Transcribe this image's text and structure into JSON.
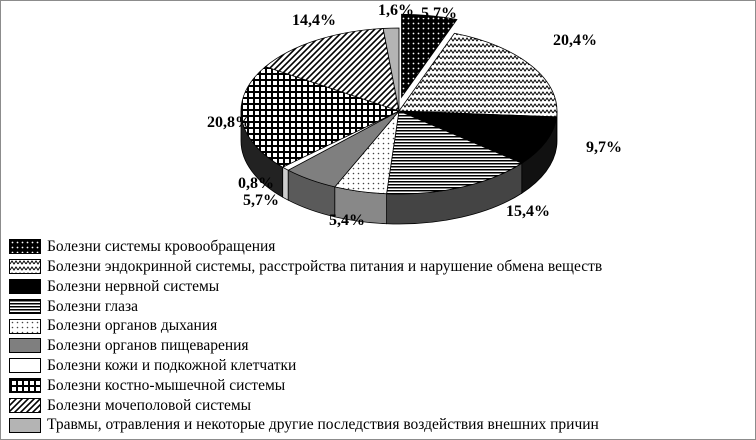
{
  "chart_data": {
    "type": "pie",
    "style": "3d-exploded",
    "legend_position": "bottom",
    "slices": [
      {
        "label": "Болезни системы кровообращения",
        "value": 5.7,
        "display": "5,7%",
        "pattern": "dots-white-on-black"
      },
      {
        "label": "Болезни эндокринной системы, расстройства питания и нарушение обмена веществ",
        "value": 20.4,
        "display": "20,4%",
        "pattern": "zigzag"
      },
      {
        "label": "Болезни нервной системы",
        "value": 9.7,
        "display": "9,7%",
        "pattern": "solid-black"
      },
      {
        "label": "Болезни глаза",
        "value": 15.4,
        "display": "15,4%",
        "pattern": "horizontal-lines"
      },
      {
        "label": "Болезни органов дыхания",
        "value": 5.4,
        "display": "5,4%",
        "pattern": "dots-black-on-white"
      },
      {
        "label": "Болезни органов пищеварения",
        "value": 5.7,
        "display": "5,7%",
        "pattern": "solid-gray"
      },
      {
        "label": "Болезни кожи и подкожной клетчатки",
        "value": 0.8,
        "display": "0,8%",
        "pattern": "white"
      },
      {
        "label": "Болезни костно-мышечной системы",
        "value": 20.8,
        "display": "20,8%",
        "pattern": "grid"
      },
      {
        "label": "Болезни мочеполовой системы",
        "value": 14.4,
        "display": "14,4%",
        "pattern": "diagonal-stripes"
      },
      {
        "label": "Травмы, отравления и некоторые другие последствия воздействия внешних причин",
        "value": 1.6,
        "display": "1,6%",
        "pattern": "light-gray"
      }
    ]
  }
}
